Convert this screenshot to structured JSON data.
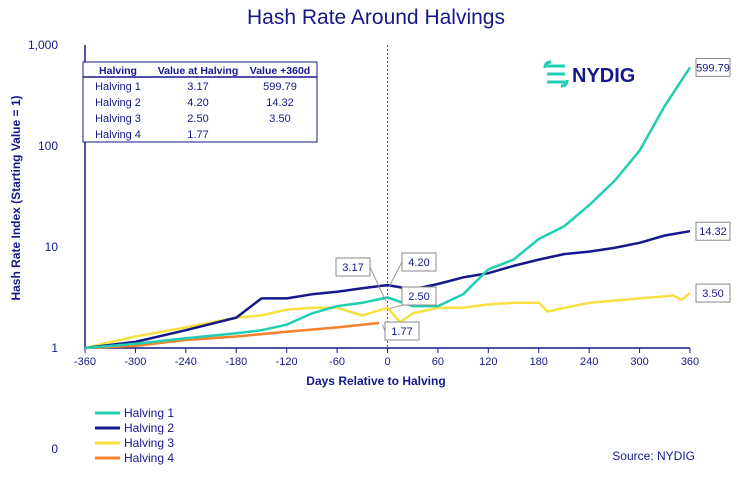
{
  "chart_data": {
    "type": "line",
    "title": "Hash Rate Around Halvings",
    "xlabel": "Days Relative to Halving",
    "ylabel": "Hash Rate Index (Starting Value = 1)",
    "yscale": "log",
    "xlim": [
      -360,
      360
    ],
    "ylim": [
      1,
      1000
    ],
    "xticks": [
      -360,
      -300,
      -240,
      -180,
      -120,
      -60,
      0,
      60,
      120,
      180,
      240,
      300,
      360
    ],
    "yticks": [
      {
        "v": 1,
        "label": "1"
      },
      {
        "v": 10,
        "label": "10"
      },
      {
        "v": 100,
        "label": "100"
      },
      {
        "v": 1000,
        "label": "1,000"
      }
    ],
    "extra_tick_label": "0",
    "legend_placement": "bottom-left",
    "series": [
      {
        "name": "Halving 1",
        "color": "#1ecfb1",
        "end_label": "599.79",
        "x": [
          -360,
          -300,
          -240,
          -180,
          -150,
          -120,
          -90,
          -60,
          -30,
          0,
          30,
          60,
          90,
          120,
          150,
          180,
          210,
          240,
          270,
          300,
          330,
          360
        ],
        "y": [
          1,
          1.1,
          1.25,
          1.4,
          1.5,
          1.7,
          2.2,
          2.6,
          2.8,
          3.17,
          2.6,
          2.6,
          3.4,
          6,
          7.5,
          12,
          16,
          26,
          45,
          90,
          250,
          600
        ]
      },
      {
        "name": "Halving 2",
        "color": "#15188a",
        "end_label": "14.32",
        "x": [
          -360,
          -300,
          -240,
          -180,
          -150,
          -120,
          -90,
          -60,
          -30,
          0,
          30,
          60,
          90,
          120,
          150,
          180,
          210,
          240,
          270,
          300,
          330,
          360
        ],
        "y": [
          1,
          1.15,
          1.5,
          2,
          3.1,
          3.1,
          3.4,
          3.6,
          3.9,
          4.2,
          3.8,
          4.3,
          5,
          5.5,
          6.5,
          7.5,
          8.5,
          9,
          9.8,
          11,
          13,
          14.32
        ]
      },
      {
        "name": "Halving 3",
        "color": "#f6e141",
        "end_label": "3.50",
        "x": [
          -360,
          -300,
          -240,
          -180,
          -150,
          -120,
          -90,
          -60,
          -30,
          0,
          15,
          30,
          60,
          90,
          120,
          150,
          180,
          190,
          240,
          300,
          340,
          350,
          360
        ],
        "y": [
          1,
          1.3,
          1.6,
          2,
          2.1,
          2.4,
          2.5,
          2.5,
          2.1,
          2.5,
          1.8,
          2.2,
          2.5,
          2.5,
          2.7,
          2.8,
          2.8,
          2.3,
          2.8,
          3.1,
          3.3,
          3,
          3.5
        ]
      },
      {
        "name": "Halving 4",
        "color": "#f7822b",
        "end_label": "1.77",
        "x": [
          -360,
          -300,
          -240,
          -180,
          -120,
          -60,
          -10
        ],
        "y": [
          1,
          1.05,
          1.2,
          1.3,
          1.45,
          1.6,
          1.77
        ]
      }
    ],
    "halving_labels": [
      {
        "series": "Halving 1",
        "value": "3.17"
      },
      {
        "series": "Halving 2",
        "value": "4.20"
      },
      {
        "series": "Halving 3",
        "value": "2.50"
      },
      {
        "series": "Halving 4",
        "value": "1.77"
      }
    ],
    "table": {
      "headers": [
        "Halving",
        "Value at Halving",
        "Value +360d"
      ],
      "rows": [
        [
          "Halving 1",
          "3.17",
          "599.79"
        ],
        [
          "Halving 2",
          "4.20",
          "14.32"
        ],
        [
          "Halving 3",
          "2.50",
          "3.50"
        ],
        [
          "Halving 4",
          "1.77",
          ""
        ]
      ]
    }
  },
  "logo": "NYDIG",
  "source": "Source: NYDIG",
  "colors": {
    "axis": "#15188a",
    "text": "#15188a"
  }
}
